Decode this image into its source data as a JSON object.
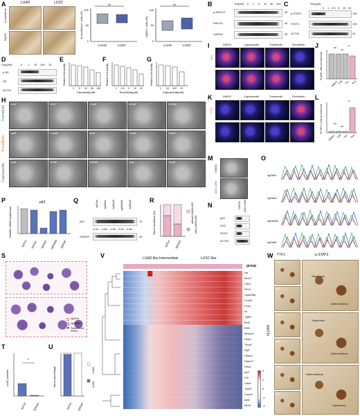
{
  "panels": [
    "A",
    "B",
    "C",
    "D",
    "E",
    "F",
    "G",
    "H",
    "I",
    "J",
    "K",
    "L",
    "M",
    "N",
    "O",
    "P",
    "Q",
    "R",
    "S",
    "T",
    "U",
    "V",
    "W"
  ],
  "panelA": {
    "cols": [
      "LUAD",
      "LUSC"
    ],
    "rows": [
      "8-oxo/dGuo",
      "NQO1"
    ],
    "chart1_ylabel": "8-oxo/dGuo+ cells (%)",
    "chart1_ns": "ns",
    "chart1_xlabels": [
      "LUAD",
      "LUSC"
    ],
    "chart1_yticks": [
      "100",
      "50",
      "0"
    ],
    "chart2_ylabel": "NQO1+ cells (%)",
    "chart2_ns": "ns",
    "chart2_xlabels": [
      "LUAD",
      "LUSC"
    ],
    "chart2_yticks": [
      "100",
      "50",
      "0"
    ]
  },
  "panelB": {
    "header": "Tra(nM)",
    "conc": [
      "0",
      "1",
      "5",
      "10",
      "50",
      "100"
    ],
    "rows": [
      "p-ERK1/2",
      "ERK1/2",
      "GAPDH"
    ],
    "mw": [
      "40",
      "40",
      "40"
    ]
  },
  "panelC": {
    "header": "Rux(μM)",
    "conc": [
      "0",
      "1",
      "2.5",
      "5",
      "10",
      "20"
    ],
    "rows": [
      "p-STAT3",
      "STAT3",
      "ACTIN"
    ],
    "mw": [
      "100",
      "100",
      "40"
    ]
  },
  "panelD": {
    "header": "Cap(nM)",
    "conc": [
      "0",
      "1",
      "10",
      "100",
      "10"
    ],
    "rows": [
      "p-S6",
      "S6",
      "ACTIN"
    ]
  },
  "panelE": {
    "ylabel": "Relative Cell viability",
    "xlabel": "Trametinib(nM)",
    "ticks": [
      "1",
      "5",
      "10",
      "50",
      "100"
    ]
  },
  "panelF": {
    "ylabel": "Relative Cell viability",
    "xlabel": "Ruxolitinib(μM)",
    "ticks": [
      "1",
      "2.5",
      "5",
      "10",
      "20"
    ]
  },
  "panelG": {
    "ylabel": "Relative Cell viability",
    "xlabel": "Capivasertib(nM)",
    "ticks": [
      "1",
      "10",
      "100",
      "10"
    ]
  },
  "panelH": {
    "rows": [
      {
        "name": "Trametinib",
        "labels": [
          "1nM",
          "5nM",
          "10nM",
          "50nM",
          "100nM"
        ]
      },
      {
        "name": "Ruxolitinib",
        "labels": [
          "1μM",
          "2.5μM",
          "5μM",
          "10μM",
          "20μM"
        ]
      },
      {
        "name": "Capivasertib",
        "labels": [
          "1nM",
          "10nM",
          "100nM",
          "1μM",
          "10μM"
        ]
      }
    ]
  },
  "panelI": {
    "cols": [
      "DMSO",
      "Capivasertib",
      "Trametinib",
      "Ruxolitinib"
    ],
    "stain": "p63"
  },
  "panelJ": {
    "ylabel": "% p63+ cells per tumoroid",
    "xlabels": [
      "DMSO",
      "Cap",
      "Tra",
      "Rux"
    ],
    "stats": [
      "ns",
      "ns",
      "***"
    ]
  },
  "panelK": {
    "cols": [
      "DMSO",
      "Capivasertib",
      "Trametinib",
      "Ruxolitinib"
    ],
    "stain": "TTF1"
  },
  "panelL": {
    "ylabel": "% TTF1+ cells per tumoroid",
    "xlabels": [
      "DMSO",
      "Cap",
      "Tra",
      "Rux"
    ],
    "stats": [
      "ns",
      "ns",
      "***"
    ]
  },
  "panelM": {
    "rows": [
      "DMSO",
      "AZD-1480"
    ]
  },
  "panelN": {
    "header": [
      "DMSO",
      "AZD-1480"
    ],
    "rows": [
      "p63",
      "CK5",
      "SOX2",
      "ACTIN"
    ]
  },
  "panelO": {
    "rows": [
      "sgStat1",
      "sgStat3",
      "sgStat5b",
      "sgStat6"
    ]
  },
  "panelP": {
    "gene": "p63",
    "ylabel": "Relative mRNA expression",
    "xlabels": [
      "sgTom",
      "sgStat1",
      "sgStat3",
      "sgStat5b",
      "sgStat6"
    ]
  },
  "panelQ": {
    "header": [
      "sgTom",
      "sgStat1",
      "sgStat3",
      "sgStat5b",
      "sgStat6"
    ],
    "rows": [
      "p63",
      "GAPDH"
    ],
    "values": [
      "1.00",
      "0.85",
      "0.85",
      "0.61",
      "0.85"
    ],
    "mw": [
      "75",
      "40"
    ]
  },
  "panelR": {
    "ylabel": "Tumor incidence (%)",
    "xlabels": [
      "sgTom",
      "sgStat3"
    ],
    "legend": [
      "without LUAS/LUSC",
      "with LUAS/LUSC"
    ]
  },
  "panelS": {
    "legend": [
      "sgTom",
      "sgStat3",
      "Squamous lesion"
    ]
  },
  "panelT": {
    "ylabel": "LUSC number",
    "xlabels": [
      "sgTom",
      "sgStat3"
    ],
    "stat": "*"
  },
  "panelU": {
    "ylabel": "Tumor percentage",
    "xlabels": [
      "sgTom",
      "sgStat3"
    ],
    "legend": [
      "LUAS",
      "LUSC"
    ]
  },
  "panelV": {
    "header_left": "LUAD-like Intermediate",
    "header_right": "LUSC-like",
    "group_label": "group",
    "genes": [
      "Hp",
      "Muc4",
      "Cdh1",
      "Pim1",
      "Lgals3bp",
      "Ccnd1",
      "Ucp2",
      "Ar",
      "Tgfb1",
      "Bcl6",
      "Ets6",
      "Mmp14",
      "Ltbp1",
      "Timp1",
      "Egfr",
      "Hspa4",
      "Ppp1r3",
      "Hif1a",
      "p63",
      "F2r",
      "Cdk4",
      "Tcp53",
      "Cops5",
      "Akt1",
      "Birc5"
    ],
    "scale": [
      "4",
      "2",
      "0",
      "-2",
      "-4"
    ]
  },
  "panelW": {
    "left_header": "TTF1",
    "right_header": "p-STAT3",
    "left_rows": [
      "TTF1",
      "p40",
      "TTF1",
      "p40",
      "TTF1",
      "p40"
    ],
    "side_label": "hLUAS",
    "annotations": [
      "Squamous",
      "Adenomatous",
      "Squamous",
      "Adenomatous",
      "Adenomatous",
      "Squamous"
    ]
  },
  "colors": {
    "box_gray": "#9aa6b2",
    "box_blue": "#4e63a8",
    "bar_gray": "#bfbfbf",
    "bar_blue": "#5b73b8",
    "bar_pink": "#e8b0c4",
    "heat_red": "#d7191c",
    "heat_blue": "#2c5fa8",
    "group_pink": "#e8a9c3"
  }
}
